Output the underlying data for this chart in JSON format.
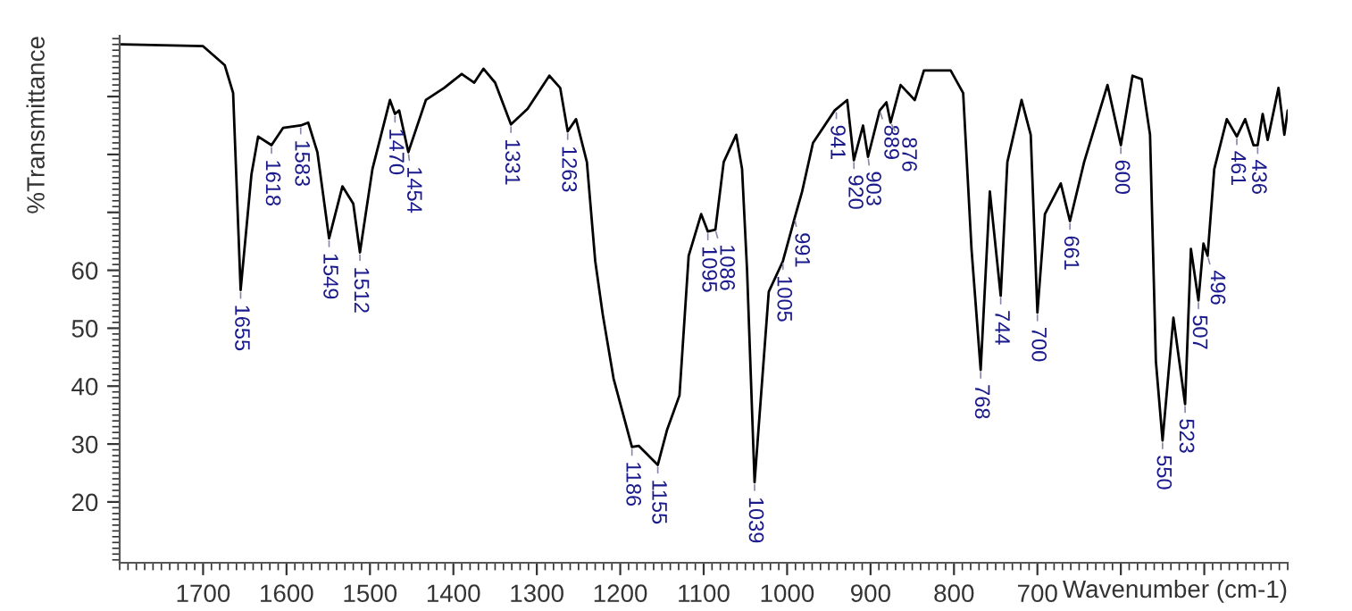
{
  "chart_data": {
    "type": "line",
    "xlabel": "Wavenumber (cm-1)",
    "ylabel": "%Transmittance",
    "xlim": [
      1800,
      400
    ],
    "ylim": [
      9.5,
      100.5
    ],
    "xticks": [
      1700,
      1600,
      1500,
      1400,
      1300,
      1200,
      1100,
      1000,
      900,
      800,
      700,
      {
        "value": 600,
        "label": null
      },
      {
        "value": 500,
        "label": null
      }
    ],
    "yticks": [
      20,
      30,
      40,
      50,
      60,
      {
        "value": 70,
        "label": null
      },
      {
        "value": 80,
        "label": null
      },
      {
        "value": 90,
        "label": null
      }
    ],
    "grid": false,
    "legend": false,
    "marker": "none",
    "line_style": "solid",
    "series": [
      {
        "color": "#000000",
        "x": [
          1798,
          1700,
          1674,
          1664,
          1655,
          1642,
          1634,
          1618,
          1604,
          1583,
          1574,
          1563,
          1549,
          1533,
          1520,
          1512,
          1497,
          1476,
          1470,
          1465,
          1454,
          1433,
          1411,
          1390,
          1375,
          1364,
          1350,
          1331,
          1311,
          1285,
          1272,
          1263,
          1253,
          1240,
          1230,
          1221,
          1208,
          1186,
          1178,
          1155,
          1144,
          1129,
          1118,
          1103,
          1095,
          1086,
          1076,
          1061,
          1054,
          1048,
          1039,
          1022,
          1005,
          991,
          982,
          969,
          943,
          928,
          920,
          909,
          903,
          889,
          881,
          876,
          864,
          847,
          836,
          804,
          789,
          779,
          768,
          757,
          744,
          736,
          719,
          708,
          700,
          691,
          672,
          661,
          644,
          616,
          600,
          586,
          575,
          565,
          558,
          550,
          537,
          523,
          516,
          507,
          501,
          496,
          488,
          473,
          461,
          451,
          441,
          436,
          430,
          424,
          411,
          404,
          400
        ],
        "values": [
          99.0,
          98.7,
          95.4,
          90.6,
          56.6,
          76.6,
          83.1,
          81.6,
          84.6,
          85.0,
          85.5,
          80.4,
          65.5,
          74.5,
          71.5,
          63.1,
          77.5,
          89.4,
          87.0,
          87.6,
          80.4,
          89.4,
          91.5,
          93.9,
          92.4,
          94.8,
          92.4,
          85.2,
          87.9,
          93.6,
          91.5,
          84.0,
          86.1,
          78.7,
          61.6,
          52.4,
          41.3,
          29.5,
          29.7,
          26.4,
          32.4,
          38.4,
          62.5,
          69.7,
          66.7,
          67.0,
          78.7,
          83.4,
          77.5,
          60.0,
          23.4,
          56.3,
          61.6,
          69.0,
          73.6,
          82.0,
          87.6,
          89.4,
          79.0,
          85.0,
          79.6,
          87.6,
          89.0,
          85.5,
          92.0,
          89.4,
          94.5,
          94.5,
          90.6,
          63.7,
          42.8,
          73.6,
          55.6,
          78.7,
          89.4,
          83.4,
          52.7,
          69.7,
          75.0,
          68.5,
          78.7,
          92.0,
          81.6,
          93.6,
          93.0,
          83.4,
          44.3,
          30.6,
          51.8,
          36.9,
          63.7,
          54.8,
          64.6,
          62.5,
          77.5,
          86.1,
          83.1,
          86.1,
          81.6,
          81.6,
          87.0,
          82.5,
          91.5,
          83.4,
          87.6
        ]
      }
    ],
    "annotations": [
      {
        "text": "1655",
        "x": 1655,
        "y": 56.6
      },
      {
        "text": "1618",
        "x": 1618,
        "y": 81.6
      },
      {
        "text": "1583",
        "x": 1583,
        "y": 85.0
      },
      {
        "text": "1549",
        "x": 1549,
        "y": 65.5
      },
      {
        "text": "1512",
        "x": 1512,
        "y": 63.1
      },
      {
        "text": "1470",
        "x": 1470,
        "y": 87.0
      },
      {
        "text": "1454",
        "x": 1454,
        "y": 80.4
      },
      {
        "text": "1331",
        "x": 1331,
        "y": 85.2
      },
      {
        "text": "1263",
        "x": 1263,
        "y": 84.0
      },
      {
        "text": "1186",
        "x": 1186,
        "y": 29.5
      },
      {
        "text": "1155",
        "x": 1155,
        "y": 26.4
      },
      {
        "text": "1095",
        "x": 1095,
        "y": 66.7
      },
      {
        "text": "1086",
        "x": 1086,
        "y": 67.0
      },
      {
        "text": "1039",
        "x": 1039,
        "y": 23.4
      },
      {
        "text": "1005",
        "x": 1005,
        "y": 61.6
      },
      {
        "text": "991",
        "x": 991,
        "y": 69.0
      },
      {
        "text": "941",
        "x": 941,
        "y": 87.6
      },
      {
        "text": "920",
        "x": 920,
        "y": 79.0
      },
      {
        "text": "903",
        "x": 903,
        "y": 79.6
      },
      {
        "text": "889",
        "x": 889,
        "y": 87.6
      },
      {
        "text": "876",
        "x": 876,
        "y": 85.5
      },
      {
        "text": "768",
        "x": 768,
        "y": 42.8
      },
      {
        "text": "744",
        "x": 744,
        "y": 55.6
      },
      {
        "text": "700",
        "x": 700,
        "y": 52.7
      },
      {
        "text": "661",
        "x": 661,
        "y": 68.5
      },
      {
        "text": "600",
        "x": 600,
        "y": 81.6
      },
      {
        "text": "550",
        "x": 550,
        "y": 30.6
      },
      {
        "text": "523",
        "x": 523,
        "y": 36.9
      },
      {
        "text": "507",
        "x": 507,
        "y": 54.8
      },
      {
        "text": "496",
        "x": 496,
        "y": 62.5
      },
      {
        "text": "461",
        "x": 461,
        "y": 83.1
      },
      {
        "text": "436",
        "x": 436,
        "y": 81.6
      }
    ]
  }
}
